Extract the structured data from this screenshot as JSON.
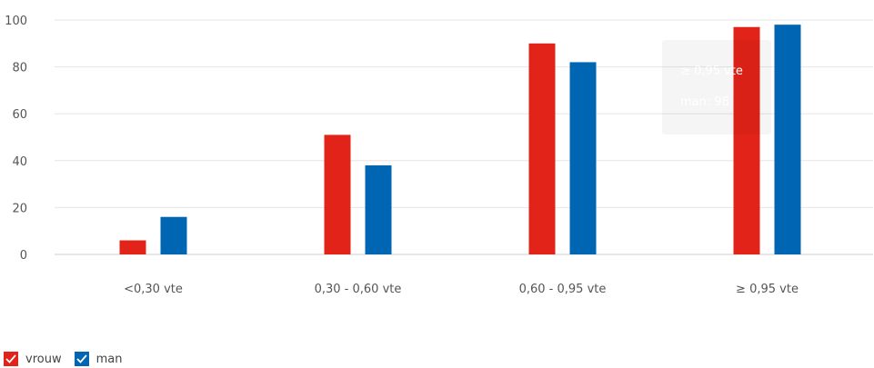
{
  "chart_data": {
    "type": "bar",
    "categories": [
      "<0,30 vte",
      "0,30 - 0,60 vte",
      "0,60 - 0,95 vte",
      "≥ 0,95 vte"
    ],
    "series": [
      {
        "name": "vrouw",
        "color": "#e2231a",
        "values": [
          6,
          51,
          90,
          97
        ]
      },
      {
        "name": "man",
        "color": "#0066b3",
        "values": [
          16,
          38,
          82,
          98
        ]
      }
    ],
    "yticks": [
      0,
      20,
      40,
      60,
      80,
      100
    ],
    "ylim": [
      0,
      100
    ],
    "grid": true,
    "legend_position": "bottom-left",
    "tooltip": {
      "title": "≥ 0,95 vte",
      "text": "man: 98"
    }
  },
  "legend": {
    "items": [
      {
        "label": "vrouw",
        "color": "#e2231a"
      },
      {
        "label": "man",
        "color": "#0066b3"
      }
    ]
  }
}
